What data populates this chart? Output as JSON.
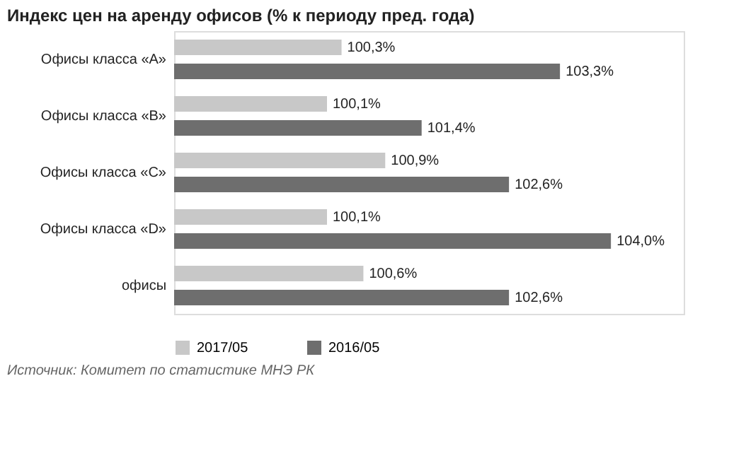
{
  "chart_data": {
    "type": "bar",
    "orientation": "horizontal",
    "title": "Индекс цен на аренду офисов (% к периоду пред. года)",
    "categories": [
      "Офисы класса «А»",
      "Офисы класса «B»",
      "Офисы класса «C»",
      "Офисы класса «D»",
      "офисы"
    ],
    "series": [
      {
        "name": "2017/05",
        "color": "#c8c8c8",
        "values": [
          100.3,
          100.1,
          100.9,
          100.1,
          100.6
        ],
        "value_labels": [
          "100,3%",
          "100,1%",
          "100,9%",
          "100,1%",
          "100,6%"
        ]
      },
      {
        "name": "2016/05",
        "color": "#6e6e6e",
        "values": [
          103.3,
          101.4,
          102.6,
          104.0,
          102.6
        ],
        "value_labels": [
          "103,3%",
          "101,4%",
          "102,6%",
          "104,0%",
          "102,6%"
        ]
      }
    ],
    "xlim": [
      98,
      105
    ],
    "tick_labels": "y",
    "grid": false,
    "legend": "bottom",
    "annotations": [
      "Источник:  Комитет по статистике МНЭ РК"
    ]
  }
}
